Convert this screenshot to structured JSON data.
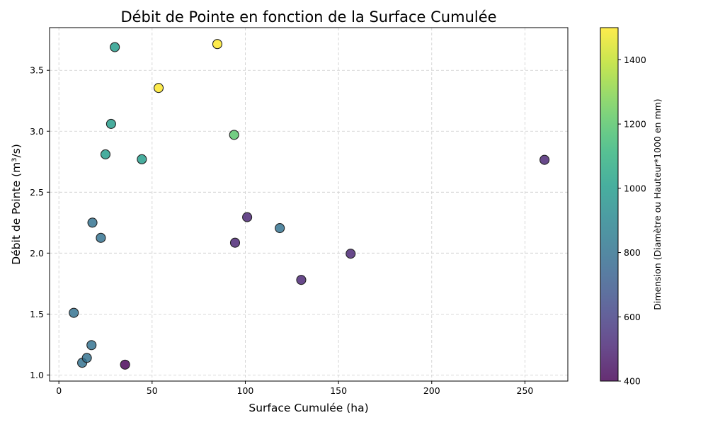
{
  "chart_data": {
    "type": "scatter",
    "title": "Débit de Pointe en fonction de la Surface Cumulée",
    "xlabel": "Surface Cumulée (ha)",
    "ylabel": "Débit de Pointe (m³/s)",
    "xlim": [
      -5,
      273
    ],
    "ylim": [
      0.95,
      3.85
    ],
    "xticks": [
      0,
      50,
      100,
      150,
      200,
      250
    ],
    "yticks": [
      1.0,
      1.5,
      2.0,
      2.5,
      3.0,
      3.5
    ],
    "xtick_labels": [
      "0",
      "50",
      "100",
      "150",
      "200",
      "250"
    ],
    "ytick_labels": [
      "1.0",
      "1.5",
      "2.0",
      "2.5",
      "3.0",
      "3.5"
    ],
    "grid": true,
    "colorbar": {
      "label": "Dimension (Diamètre ou Hauteur*1000 en mm)",
      "range": [
        400,
        1500
      ],
      "ticks": [
        400,
        600,
        800,
        1000,
        1200,
        1400
      ],
      "tick_labels": [
        "400",
        "600",
        "800",
        "1000",
        "1200",
        "1400"
      ],
      "colormap": "viridis"
    },
    "points": [
      {
        "x": 8,
        "y": 1.51,
        "c": 800
      },
      {
        "x": 12.5,
        "y": 1.1,
        "c": 800
      },
      {
        "x": 15,
        "y": 1.14,
        "c": 800
      },
      {
        "x": 17.5,
        "y": 1.245,
        "c": 800
      },
      {
        "x": 18,
        "y": 2.25,
        "c": 800
      },
      {
        "x": 22.5,
        "y": 2.125,
        "c": 800
      },
      {
        "x": 25,
        "y": 2.81,
        "c": 1000
      },
      {
        "x": 28,
        "y": 3.06,
        "c": 1000
      },
      {
        "x": 30,
        "y": 3.69,
        "c": 1000
      },
      {
        "x": 35.5,
        "y": 1.085,
        "c": 400
      },
      {
        "x": 44.5,
        "y": 2.77,
        "c": 1000
      },
      {
        "x": 53.5,
        "y": 3.355,
        "c": 1500
      },
      {
        "x": 85,
        "y": 3.715,
        "c": 1500
      },
      {
        "x": 94,
        "y": 2.97,
        "c": 1200
      },
      {
        "x": 94.5,
        "y": 2.085,
        "c": 500
      },
      {
        "x": 101,
        "y": 2.295,
        "c": 500
      },
      {
        "x": 118.5,
        "y": 2.205,
        "c": 800
      },
      {
        "x": 130,
        "y": 1.78,
        "c": 500
      },
      {
        "x": 156.5,
        "y": 1.995,
        "c": 500
      },
      {
        "x": 260.5,
        "y": 2.765,
        "c": 500
      }
    ]
  }
}
